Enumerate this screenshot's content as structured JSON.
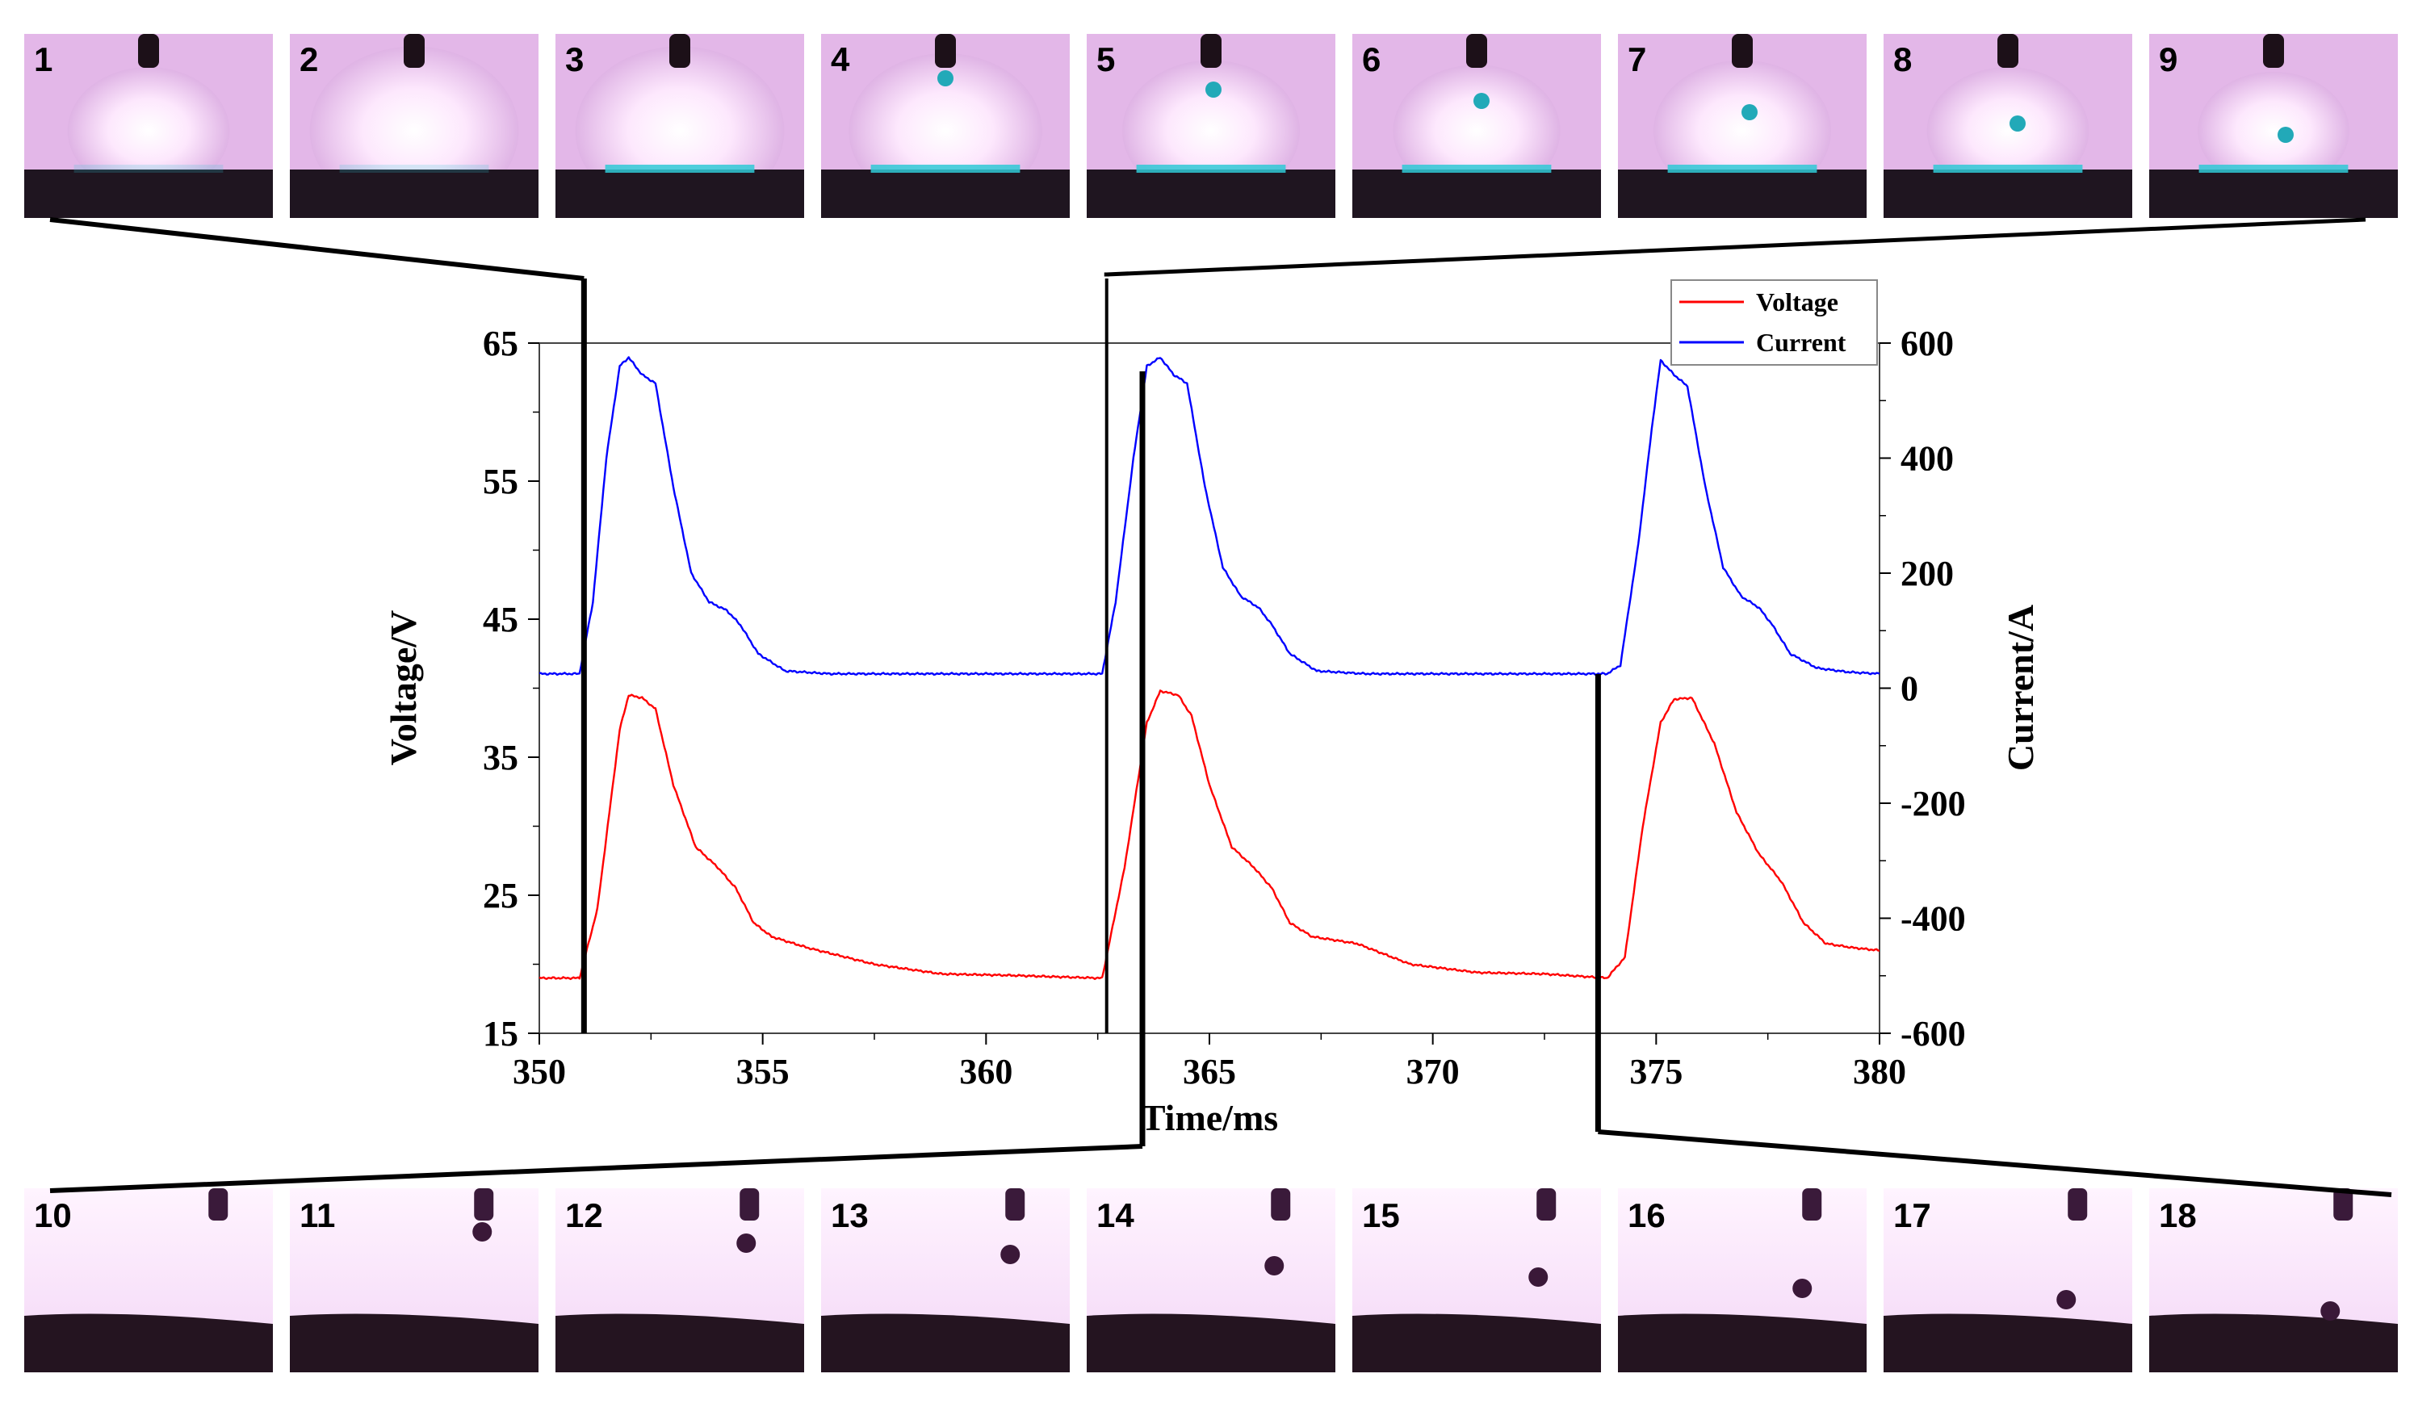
{
  "chart_data": {
    "type": "line",
    "title": "",
    "xlabel": "Time/ms",
    "ylabel_left": "Voltage/V",
    "ylabel_right": "Current/A",
    "xlim": [
      350,
      380
    ],
    "ylim_left": [
      15,
      65
    ],
    "ylim_right": [
      -600,
      600
    ],
    "x_ticks": [
      350,
      355,
      360,
      365,
      370,
      375,
      380
    ],
    "y_left_ticks": [
      15,
      25,
      35,
      45,
      55,
      65
    ],
    "y_right_ticks": [
      -600,
      -400,
      -200,
      0,
      200,
      400,
      600
    ],
    "grid": false,
    "legend": "top-right",
    "series": [
      {
        "name": "Voltage",
        "axis": "left",
        "color": "#ff0000",
        "points": [
          [
            350.0,
            19.0
          ],
          [
            350.9,
            19.0
          ],
          [
            351.3,
            24.0
          ],
          [
            351.8,
            37.0
          ],
          [
            352.0,
            39.5
          ],
          [
            352.3,
            39.3
          ],
          [
            352.6,
            38.5
          ],
          [
            353.0,
            33.0
          ],
          [
            353.5,
            28.5
          ],
          [
            354.0,
            27.0
          ],
          [
            354.4,
            25.5
          ],
          [
            354.8,
            23.0
          ],
          [
            355.2,
            22.0
          ],
          [
            356.0,
            21.2
          ],
          [
            357.5,
            20.0
          ],
          [
            359.0,
            19.3
          ],
          [
            360.5,
            19.2
          ],
          [
            362.5,
            19.0
          ],
          [
            362.6,
            19.0
          ],
          [
            363.1,
            27.0
          ],
          [
            363.6,
            37.5
          ],
          [
            363.9,
            39.8
          ],
          [
            364.3,
            39.5
          ],
          [
            364.6,
            38.0
          ],
          [
            365.0,
            33.0
          ],
          [
            365.5,
            28.5
          ],
          [
            366.0,
            27.0
          ],
          [
            366.4,
            25.5
          ],
          [
            366.8,
            23.0
          ],
          [
            367.3,
            22.0
          ],
          [
            368.3,
            21.5
          ],
          [
            369.5,
            20.0
          ],
          [
            371.0,
            19.4
          ],
          [
            372.5,
            19.3
          ],
          [
            373.9,
            19.0
          ],
          [
            374.3,
            20.5
          ],
          [
            374.7,
            30.0
          ],
          [
            375.1,
            37.5
          ],
          [
            375.4,
            39.2
          ],
          [
            375.8,
            39.3
          ],
          [
            376.3,
            36.0
          ],
          [
            376.8,
            31.0
          ],
          [
            377.3,
            28.0
          ],
          [
            377.8,
            26.0
          ],
          [
            378.3,
            23.0
          ],
          [
            378.8,
            21.5
          ],
          [
            379.4,
            21.2
          ],
          [
            380.0,
            21.0
          ]
        ]
      },
      {
        "name": "Current",
        "axis": "right",
        "color": "#0000ff",
        "points": [
          [
            350.0,
            25
          ],
          [
            350.9,
            25
          ],
          [
            351.2,
            150
          ],
          [
            351.5,
            400
          ],
          [
            351.8,
            560
          ],
          [
            352.0,
            575
          ],
          [
            352.3,
            545
          ],
          [
            352.6,
            530
          ],
          [
            353.0,
            350
          ],
          [
            353.4,
            200
          ],
          [
            353.8,
            150
          ],
          [
            354.2,
            135
          ],
          [
            354.5,
            110
          ],
          [
            354.9,
            60
          ],
          [
            355.5,
            30
          ],
          [
            356.5,
            25
          ],
          [
            360.0,
            25
          ],
          [
            362.6,
            25
          ],
          [
            362.9,
            150
          ],
          [
            363.3,
            400
          ],
          [
            363.6,
            560
          ],
          [
            363.9,
            575
          ],
          [
            364.2,
            545
          ],
          [
            364.5,
            530
          ],
          [
            364.9,
            350
          ],
          [
            365.3,
            210
          ],
          [
            365.7,
            160
          ],
          [
            366.1,
            140
          ],
          [
            366.4,
            110
          ],
          [
            366.8,
            60
          ],
          [
            367.4,
            30
          ],
          [
            368.5,
            25
          ],
          [
            372.0,
            25
          ],
          [
            373.9,
            25
          ],
          [
            374.2,
            40
          ],
          [
            374.6,
            250
          ],
          [
            374.9,
            450
          ],
          [
            375.1,
            570
          ],
          [
            375.4,
            545
          ],
          [
            375.7,
            525
          ],
          [
            376.1,
            350
          ],
          [
            376.5,
            210
          ],
          [
            376.9,
            160
          ],
          [
            377.3,
            140
          ],
          [
            377.6,
            110
          ],
          [
            378.0,
            60
          ],
          [
            378.6,
            35
          ],
          [
            379.3,
            28
          ],
          [
            380.0,
            25
          ]
        ]
      }
    ],
    "annotation_lines_x": [
      351.0,
      362.7,
      363.5,
      373.7
    ],
    "frames_top": [
      "1",
      "2",
      "3",
      "4",
      "5",
      "6",
      "7",
      "8",
      "9"
    ],
    "frames_bottom": [
      "10",
      "11",
      "12",
      "13",
      "14",
      "15",
      "16",
      "17",
      "18"
    ]
  }
}
